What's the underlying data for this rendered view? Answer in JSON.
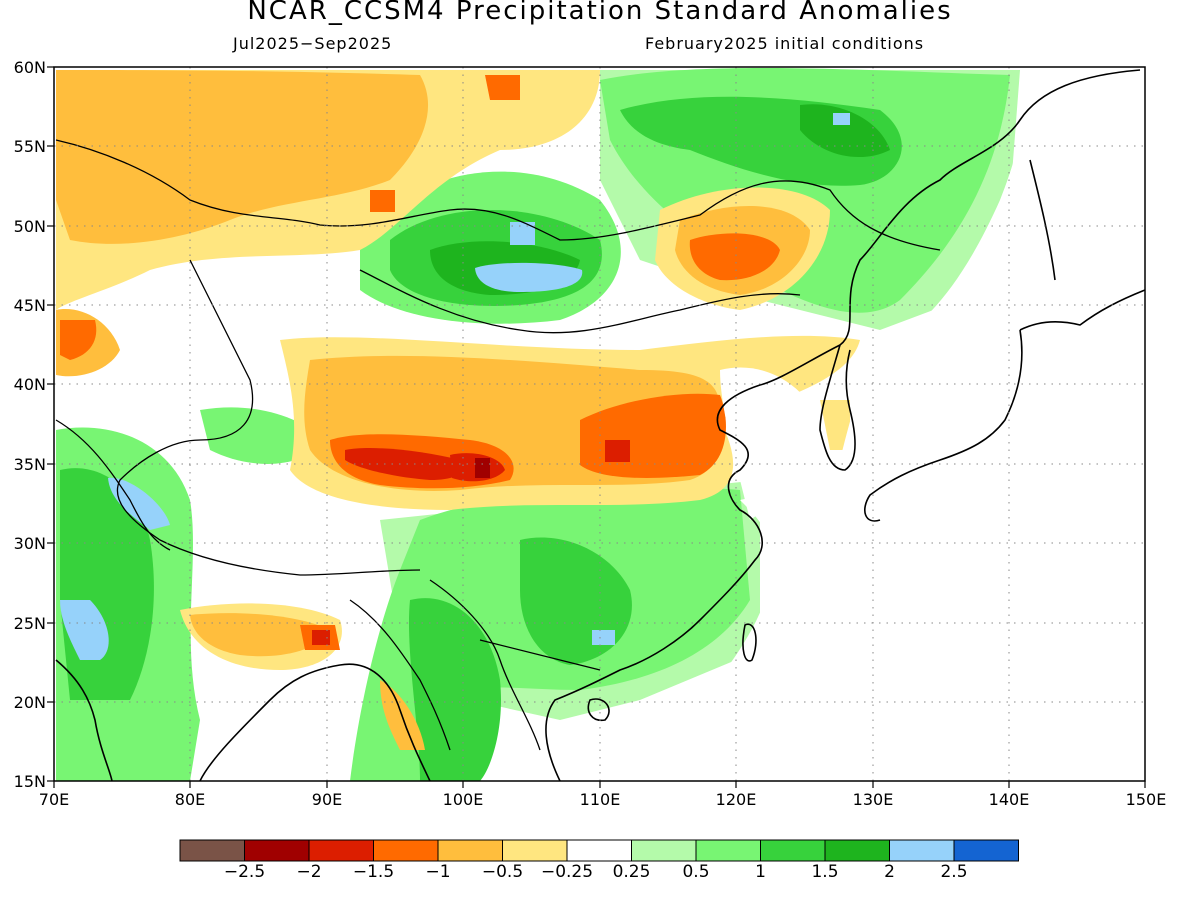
{
  "title": "NCAR_CCSM4 Precipitation Standard Anomalies",
  "subtitle_left": "Jul2025−Sep2025",
  "subtitle_right": "February2025 initial conditions",
  "lat_labels": [
    "60N",
    "55N",
    "50N",
    "45N",
    "40N",
    "35N",
    "30N",
    "25N",
    "20N",
    "15N"
  ],
  "lon_labels": [
    "70E",
    "80E",
    "90E",
    "100E",
    "110E",
    "120E",
    "130E",
    "140E",
    "150E"
  ],
  "colorbar": {
    "colors": [
      "#7a5347",
      "#a00000",
      "#dc1e00",
      "#ff6a00",
      "#ffbe3d",
      "#ffe680",
      "#ffffff",
      "#b4faaa",
      "#78f573",
      "#37d23c",
      "#1eb41e",
      "#96d2fa",
      "#1464d2"
    ],
    "labels": [
      "−2.5",
      "−2",
      "−1.5",
      "−1",
      "−0.5",
      "−0.25",
      "0.25",
      "0.5",
      "1",
      "1.5",
      "2",
      "2.5"
    ]
  }
}
